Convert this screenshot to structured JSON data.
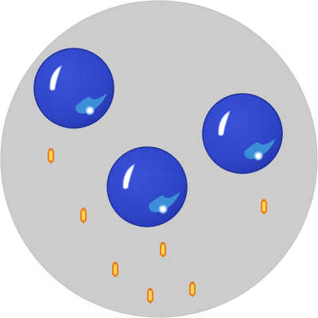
{
  "colors": {
    "background": "#ffffff",
    "arena": "#cccccc",
    "arena_outline": "#bdbdbd",
    "bubble_fill": "#2f45c8",
    "bubble_outline": "#1e2f9a",
    "bubble_highlight": "#ffffff",
    "bubble_highlight_edge": "#9fb0ff",
    "bubble_reflection": "#3c8fd6",
    "bubble_reflection_light": "#86c3f0",
    "projectile_outer": "#e87a12",
    "projectile_inner": "#ffd35a"
  },
  "entities": {
    "bubbles": [
      {
        "id": "bubble-left",
        "icon": "blue-bubble"
      },
      {
        "id": "bubble-center",
        "icon": "blue-bubble"
      },
      {
        "id": "bubble-right",
        "icon": "blue-bubble"
      }
    ],
    "projectiles": [
      {
        "id": "shot-1",
        "icon": "flame-bullet"
      },
      {
        "id": "shot-2",
        "icon": "flame-bullet"
      },
      {
        "id": "shot-3",
        "icon": "flame-bullet"
      },
      {
        "id": "shot-4",
        "icon": "flame-bullet"
      },
      {
        "id": "shot-5",
        "icon": "flame-bullet"
      },
      {
        "id": "shot-6",
        "icon": "flame-bullet"
      },
      {
        "id": "shot-7",
        "icon": "flame-bullet"
      }
    ]
  }
}
